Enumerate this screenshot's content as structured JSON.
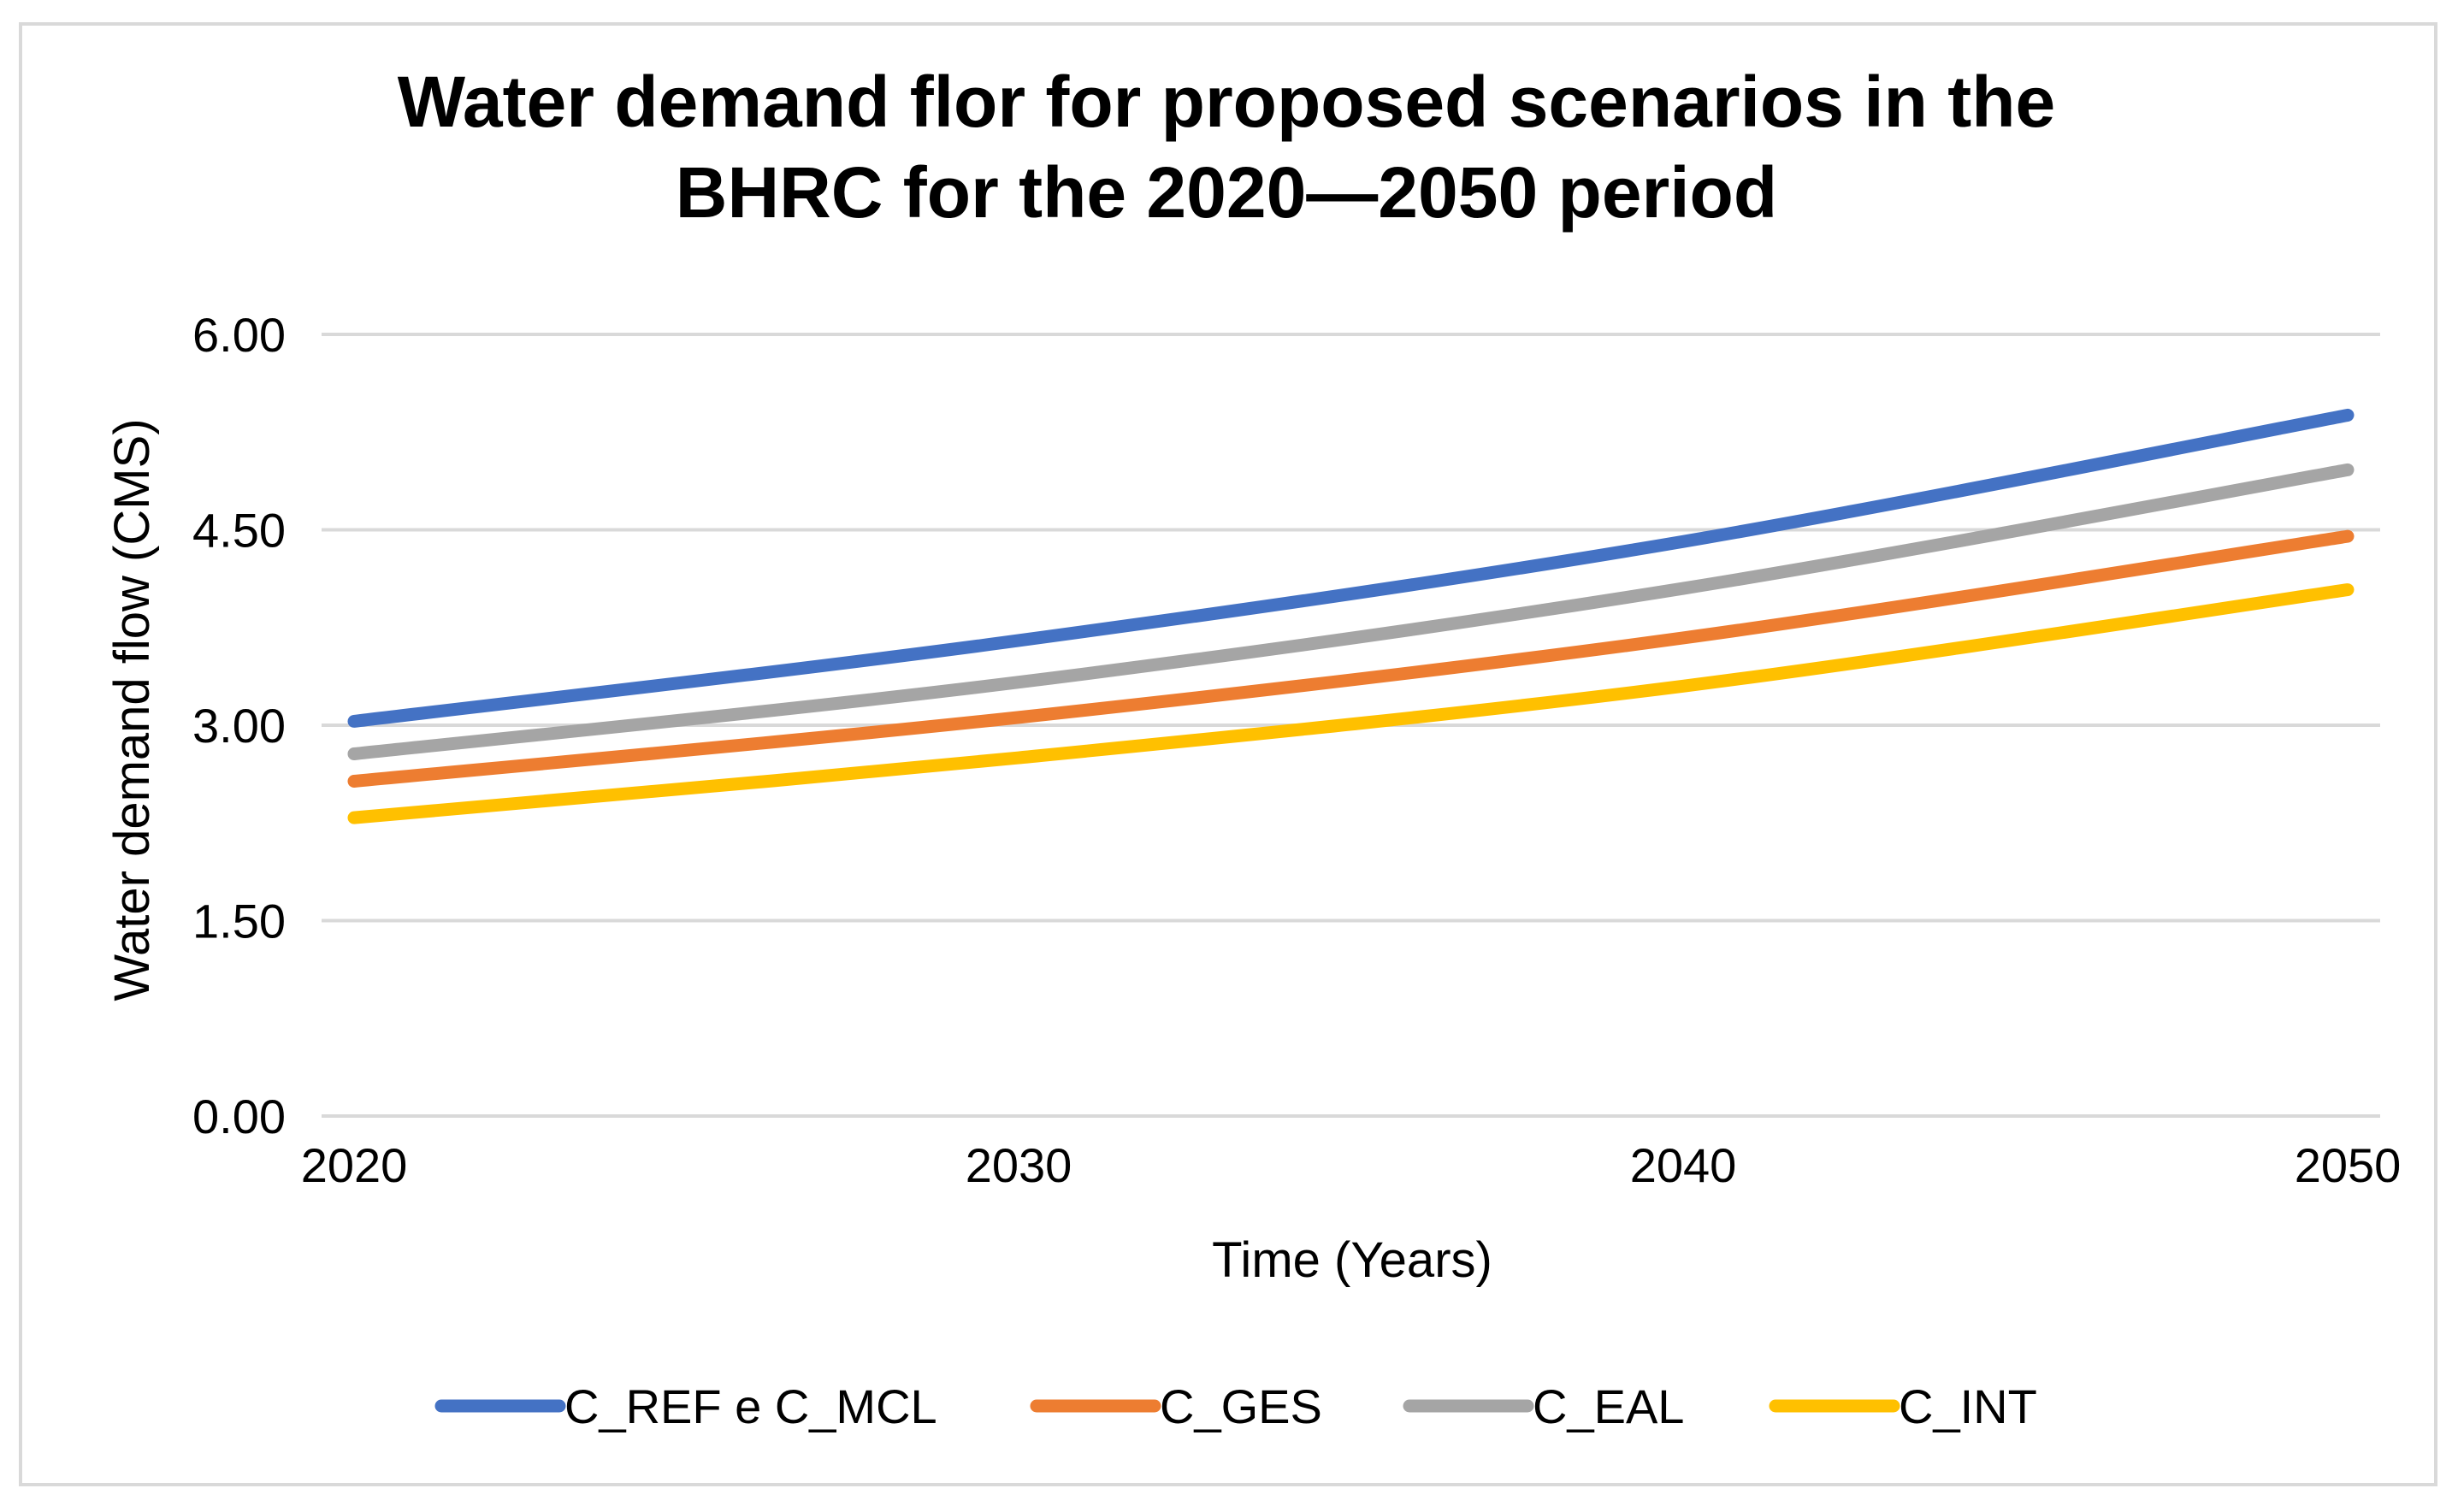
{
  "chart_data": {
    "type": "line",
    "title_lines": [
      "Water demand flor for proposed scenarios in the",
      "BHRC for the 2020—2050 period"
    ],
    "xlabel": "Time (Years)",
    "ylabel": "Water demand flow (CMS)",
    "x": [
      2020,
      2030,
      2040,
      2050
    ],
    "x_tick_labels": [
      "2020",
      "2030",
      "2040",
      "2050"
    ],
    "ylim": [
      0,
      6
    ],
    "y_ticks": [
      0,
      1.5,
      3,
      4.5,
      6
    ],
    "y_tick_labels": [
      "0.00",
      "1.50",
      "3.00",
      "4.50",
      "6.00"
    ],
    "grid": true,
    "legend_position": "bottom",
    "series": [
      {
        "name": "C_REF e C_MCL",
        "color": "#4472c4",
        "values": [
          3.03,
          3.65,
          4.41,
          5.38
        ]
      },
      {
        "name": "C_GES",
        "color": "#ed7d31",
        "values": [
          2.57,
          3.06,
          3.67,
          4.45
        ]
      },
      {
        "name": "C_EAL",
        "color": "#a5a5a5",
        "values": [
          2.78,
          3.33,
          4.05,
          4.96
        ]
      },
      {
        "name": "C_INT",
        "color": "#ffc000",
        "values": [
          2.29,
          2.75,
          3.3,
          4.04
        ]
      }
    ],
    "colors": {
      "gridline": "#d9d9d9",
      "axis": "#d9d9d9",
      "frame": "#d9d9d9"
    }
  }
}
